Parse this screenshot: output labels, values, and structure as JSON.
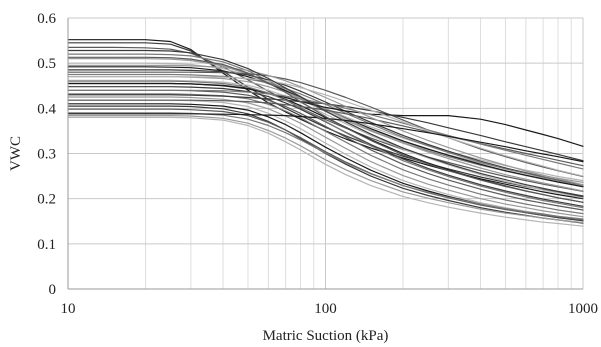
{
  "chart_data": {
    "type": "line",
    "xlabel": "Matric Suction (kPa)",
    "ylabel": "VWC",
    "xscale": "log",
    "xlim": [
      10,
      1000
    ],
    "ylim": [
      0,
      0.6
    ],
    "x_ticks": [
      10,
      100,
      1000
    ],
    "x_tick_labels": [
      "10",
      "100",
      "1000"
    ],
    "y_ticks": [
      0,
      0.1,
      0.2,
      0.3,
      0.4,
      0.5,
      0.6
    ],
    "y_tick_labels": [
      "0",
      "0.1",
      "0.2",
      "0.3",
      "0.4",
      "0.5",
      "0.6"
    ],
    "grid": true,
    "legend": "none",
    "series_colors": [
      "#1a1a1a",
      "#3a3a3a",
      "#5a5a5a",
      "#7a7a7a",
      "#999999",
      "#b5b5b5"
    ],
    "x": [
      10,
      12,
      15,
      20,
      25,
      30,
      40,
      50,
      60,
      70,
      80,
      100,
      120,
      150,
      200,
      250,
      300,
      400,
      500,
      600,
      700,
      800,
      1000
    ],
    "series": [
      {
        "values": [
          0.552,
          0.552,
          0.552,
          0.552,
          0.548,
          0.53,
          0.478,
          0.44,
          0.412,
          0.392,
          0.376,
          0.35,
          0.332,
          0.312,
          0.29,
          0.274,
          0.262,
          0.244,
          0.232,
          0.223,
          0.215,
          0.209,
          0.2
        ]
      },
      {
        "values": [
          0.545,
          0.545,
          0.545,
          0.545,
          0.542,
          0.527,
          0.482,
          0.447,
          0.42,
          0.4,
          0.384,
          0.358,
          0.339,
          0.318,
          0.294,
          0.278,
          0.266,
          0.248,
          0.236,
          0.227,
          0.22,
          0.214,
          0.204
        ]
      },
      {
        "values": [
          0.535,
          0.535,
          0.535,
          0.534,
          0.531,
          0.522,
          0.492,
          0.463,
          0.438,
          0.418,
          0.401,
          0.375,
          0.356,
          0.334,
          0.309,
          0.292,
          0.28,
          0.262,
          0.249,
          0.24,
          0.232,
          0.226,
          0.216
        ]
      },
      {
        "values": [
          0.52,
          0.52,
          0.52,
          0.52,
          0.519,
          0.516,
          0.503,
          0.483,
          0.461,
          0.441,
          0.423,
          0.394,
          0.373,
          0.35,
          0.323,
          0.306,
          0.293,
          0.274,
          0.261,
          0.251,
          0.243,
          0.237,
          0.226
        ]
      },
      {
        "values": [
          0.51,
          0.51,
          0.51,
          0.51,
          0.509,
          0.506,
          0.494,
          0.476,
          0.456,
          0.437,
          0.42,
          0.393,
          0.373,
          0.351,
          0.326,
          0.309,
          0.297,
          0.279,
          0.267,
          0.258,
          0.251,
          0.245,
          0.236
        ]
      },
      {
        "values": [
          0.5,
          0.5,
          0.5,
          0.5,
          0.499,
          0.497,
          0.488,
          0.474,
          0.457,
          0.441,
          0.426,
          0.4,
          0.381,
          0.359,
          0.334,
          0.317,
          0.304,
          0.286,
          0.273,
          0.263,
          0.256,
          0.249,
          0.24
        ]
      },
      {
        "values": [
          0.492,
          0.492,
          0.492,
          0.492,
          0.491,
          0.49,
          0.483,
          0.47,
          0.455,
          0.439,
          0.424,
          0.398,
          0.378,
          0.355,
          0.328,
          0.31,
          0.296,
          0.276,
          0.262,
          0.252,
          0.244,
          0.237,
          0.227
        ]
      },
      {
        "values": [
          0.485,
          0.485,
          0.485,
          0.485,
          0.485,
          0.484,
          0.481,
          0.474,
          0.463,
          0.451,
          0.438,
          0.414,
          0.393,
          0.369,
          0.34,
          0.32,
          0.305,
          0.283,
          0.268,
          0.257,
          0.248,
          0.241,
          0.23
        ]
      },
      {
        "values": [
          0.48,
          0.48,
          0.48,
          0.48,
          0.48,
          0.48,
          0.479,
          0.477,
          0.472,
          0.465,
          0.457,
          0.44,
          0.424,
          0.403,
          0.374,
          0.352,
          0.335,
          0.31,
          0.293,
          0.28,
          0.27,
          0.262,
          0.249
        ]
      },
      {
        "values": [
          0.475,
          0.475,
          0.475,
          0.475,
          0.475,
          0.474,
          0.471,
          0.465,
          0.456,
          0.444,
          0.432,
          0.409,
          0.389,
          0.365,
          0.336,
          0.317,
          0.302,
          0.281,
          0.266,
          0.256,
          0.247,
          0.24,
          0.229
        ]
      },
      {
        "values": [
          0.47,
          0.47,
          0.47,
          0.47,
          0.47,
          0.469,
          0.466,
          0.459,
          0.448,
          0.436,
          0.423,
          0.398,
          0.377,
          0.352,
          0.323,
          0.303,
          0.289,
          0.268,
          0.253,
          0.243,
          0.235,
          0.228,
          0.217
        ]
      },
      {
        "values": [
          0.462,
          0.462,
          0.462,
          0.462,
          0.462,
          0.461,
          0.458,
          0.451,
          0.44,
          0.427,
          0.413,
          0.387,
          0.366,
          0.34,
          0.31,
          0.29,
          0.275,
          0.253,
          0.238,
          0.228,
          0.219,
          0.213,
          0.202
        ]
      },
      {
        "values": [
          0.455,
          0.455,
          0.455,
          0.455,
          0.455,
          0.454,
          0.451,
          0.444,
          0.433,
          0.42,
          0.406,
          0.38,
          0.358,
          0.331,
          0.3,
          0.279,
          0.264,
          0.242,
          0.228,
          0.217,
          0.209,
          0.202,
          0.192
        ]
      },
      {
        "values": [
          0.448,
          0.448,
          0.448,
          0.448,
          0.448,
          0.447,
          0.444,
          0.437,
          0.426,
          0.412,
          0.398,
          0.37,
          0.347,
          0.32,
          0.288,
          0.267,
          0.252,
          0.231,
          0.217,
          0.207,
          0.199,
          0.193,
          0.183
        ]
      },
      {
        "values": [
          0.44,
          0.44,
          0.44,
          0.44,
          0.44,
          0.439,
          0.436,
          0.429,
          0.418,
          0.404,
          0.389,
          0.36,
          0.336,
          0.308,
          0.276,
          0.256,
          0.241,
          0.221,
          0.207,
          0.197,
          0.19,
          0.184,
          0.175
        ]
      },
      {
        "values": [
          0.432,
          0.432,
          0.432,
          0.432,
          0.432,
          0.431,
          0.428,
          0.421,
          0.409,
          0.394,
          0.379,
          0.349,
          0.325,
          0.296,
          0.264,
          0.244,
          0.23,
          0.21,
          0.197,
          0.188,
          0.181,
          0.175,
          0.167
        ]
      },
      {
        "values": [
          0.425,
          0.425,
          0.425,
          0.425,
          0.425,
          0.424,
          0.42,
          0.412,
          0.399,
          0.383,
          0.367,
          0.336,
          0.311,
          0.282,
          0.251,
          0.232,
          0.219,
          0.2,
          0.188,
          0.18,
          0.173,
          0.168,
          0.16
        ]
      },
      {
        "values": [
          0.418,
          0.418,
          0.418,
          0.418,
          0.418,
          0.417,
          0.413,
          0.404,
          0.389,
          0.372,
          0.355,
          0.323,
          0.298,
          0.27,
          0.24,
          0.222,
          0.209,
          0.191,
          0.18,
          0.172,
          0.166,
          0.161,
          0.154
        ]
      },
      {
        "values": [
          0.41,
          0.41,
          0.41,
          0.41,
          0.41,
          0.409,
          0.405,
          0.396,
          0.381,
          0.364,
          0.346,
          0.314,
          0.29,
          0.263,
          0.234,
          0.217,
          0.205,
          0.188,
          0.177,
          0.169,
          0.163,
          0.158,
          0.151
        ]
      },
      {
        "values": [
          0.405,
          0.405,
          0.405,
          0.405,
          0.405,
          0.404,
          0.399,
          0.388,
          0.371,
          0.352,
          0.333,
          0.3,
          0.276,
          0.25,
          0.223,
          0.207,
          0.196,
          0.18,
          0.17,
          0.163,
          0.157,
          0.153,
          0.146
        ]
      },
      {
        "values": [
          0.398,
          0.398,
          0.398,
          0.398,
          0.398,
          0.397,
          0.393,
          0.384,
          0.369,
          0.352,
          0.335,
          0.304,
          0.281,
          0.256,
          0.229,
          0.213,
          0.202,
          0.186,
          0.176,
          0.169,
          0.163,
          0.159,
          0.152
        ]
      },
      {
        "values": [
          0.39,
          0.39,
          0.39,
          0.39,
          0.39,
          0.389,
          0.385,
          0.376,
          0.362,
          0.346,
          0.33,
          0.301,
          0.279,
          0.255,
          0.229,
          0.214,
          0.203,
          0.188,
          0.178,
          0.171,
          0.166,
          0.161,
          0.155
        ]
      },
      {
        "values": [
          0.384,
          0.384,
          0.384,
          0.384,
          0.384,
          0.383,
          0.378,
          0.367,
          0.351,
          0.334,
          0.317,
          0.286,
          0.264,
          0.24,
          0.215,
          0.201,
          0.191,
          0.177,
          0.168,
          0.162,
          0.157,
          0.153,
          0.147
        ]
      },
      {
        "values": [
          0.38,
          0.38,
          0.38,
          0.38,
          0.38,
          0.379,
          0.374,
          0.362,
          0.345,
          0.326,
          0.308,
          0.276,
          0.253,
          0.229,
          0.205,
          0.191,
          0.181,
          0.168,
          0.159,
          0.153,
          0.148,
          0.145,
          0.139
        ]
      },
      {
        "values": [
          0.455,
          0.455,
          0.455,
          0.455,
          0.455,
          0.454,
          0.45,
          0.443,
          0.433,
          0.424,
          0.415,
          0.402,
          0.394,
          0.387,
          0.384,
          0.384,
          0.384,
          0.376,
          0.364,
          0.352,
          0.342,
          0.333,
          0.316
        ]
      },
      {
        "values": [
          0.43,
          0.43,
          0.43,
          0.43,
          0.43,
          0.429,
          0.427,
          0.424,
          0.421,
          0.418,
          0.415,
          0.41,
          0.404,
          0.395,
          0.38,
          0.368,
          0.357,
          0.34,
          0.326,
          0.315,
          0.306,
          0.298,
          0.284
        ]
      },
      {
        "values": [
          0.418,
          0.418,
          0.418,
          0.418,
          0.418,
          0.418,
          0.417,
          0.415,
          0.412,
          0.408,
          0.404,
          0.396,
          0.388,
          0.377,
          0.361,
          0.348,
          0.338,
          0.322,
          0.31,
          0.3,
          0.292,
          0.285,
          0.273
        ]
      },
      {
        "values": [
          0.44,
          0.44,
          0.44,
          0.44,
          0.44,
          0.44,
          0.439,
          0.436,
          0.432,
          0.427,
          0.421,
          0.41,
          0.4,
          0.386,
          0.367,
          0.352,
          0.34,
          0.321,
          0.307,
          0.296,
          0.287,
          0.279,
          0.266
        ]
      },
      {
        "values": [
          0.495,
          0.495,
          0.495,
          0.495,
          0.495,
          0.494,
          0.491,
          0.484,
          0.473,
          0.461,
          0.448,
          0.424,
          0.404,
          0.38,
          0.35,
          0.329,
          0.313,
          0.29,
          0.274,
          0.261,
          0.252,
          0.244,
          0.231
        ]
      },
      {
        "values": [
          0.47,
          0.47,
          0.47,
          0.47,
          0.47,
          0.47,
          0.469,
          0.466,
          0.461,
          0.454,
          0.446,
          0.43,
          0.415,
          0.396,
          0.37,
          0.35,
          0.335,
          0.312,
          0.295,
          0.282,
          0.272,
          0.263,
          0.25
        ]
      },
      {
        "values": [
          0.388,
          0.388,
          0.388,
          0.388,
          0.388,
          0.388,
          0.387,
          0.386,
          0.385,
          0.384,
          0.382,
          0.378,
          0.373,
          0.366,
          0.355,
          0.346,
          0.338,
          0.325,
          0.315,
          0.306,
          0.299,
          0.293,
          0.282
        ]
      },
      {
        "values": [
          0.528,
          0.528,
          0.528,
          0.528,
          0.527,
          0.523,
          0.508,
          0.488,
          0.466,
          0.445,
          0.426,
          0.394,
          0.37,
          0.343,
          0.312,
          0.292,
          0.277,
          0.256,
          0.242,
          0.231,
          0.223,
          0.216,
          0.206
        ]
      },
      {
        "values": [
          0.513,
          0.513,
          0.513,
          0.513,
          0.512,
          0.509,
          0.497,
          0.478,
          0.456,
          0.435,
          0.415,
          0.382,
          0.357,
          0.329,
          0.297,
          0.277,
          0.262,
          0.241,
          0.227,
          0.217,
          0.209,
          0.202,
          0.192
        ]
      },
      {
        "values": [
          0.46,
          0.46,
          0.46,
          0.46,
          0.46,
          0.459,
          0.455,
          0.447,
          0.434,
          0.418,
          0.402,
          0.371,
          0.346,
          0.317,
          0.284,
          0.264,
          0.249,
          0.228,
          0.214,
          0.204,
          0.196,
          0.19,
          0.18
        ]
      }
    ]
  }
}
